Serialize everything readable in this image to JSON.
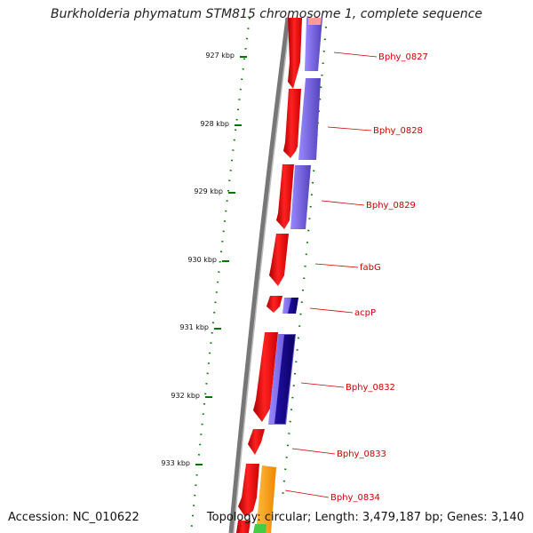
{
  "title": "Burkholderia phymatum STM815 chromosome 1, complete sequence",
  "footer": {
    "accession": "Accession: NC_010622",
    "summary": "Topology: circular; Length: 3,479,187 bp; Genes: 3,140"
  },
  "ticks": [
    {
      "label": "927 kbp",
      "kbp": 927
    },
    {
      "label": "928 kbp",
      "kbp": 928
    },
    {
      "label": "929 kbp",
      "kbp": 929
    },
    {
      "label": "930 kbp",
      "kbp": 930
    },
    {
      "label": "931 kbp",
      "kbp": 931
    },
    {
      "label": "932 kbp",
      "kbp": 932
    },
    {
      "label": "933 kbp",
      "kbp": 933
    }
  ],
  "genes": [
    {
      "label": "Bphy_0827"
    },
    {
      "label": "Bphy_0828"
    },
    {
      "label": "Bphy_0829"
    },
    {
      "label": "fabG"
    },
    {
      "label": "acpP"
    },
    {
      "label": "Bphy_0832"
    },
    {
      "label": "Bphy_0833"
    },
    {
      "label": "Bphy_0834"
    }
  ],
  "colors": {
    "cds_forward": "#ee0000",
    "cds_shadow": "#ff9a9a",
    "protein": "#7766dd",
    "protein_dark": "#110088",
    "orange_feature": "#ff9900",
    "green_feature": "#44cc44",
    "backbone": "#777777",
    "tick_mark": "#007700",
    "gene_label": "#cc0000"
  }
}
